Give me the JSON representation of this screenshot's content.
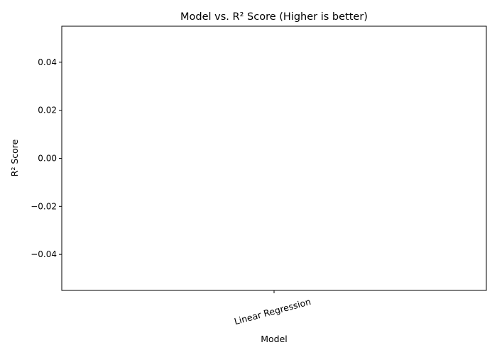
{
  "chart_data": {
    "type": "bar",
    "title": "Model vs. R² Score (Higher is better)",
    "xlabel": "Model",
    "ylabel": "R² Score",
    "categories": [
      "Linear Regression"
    ],
    "values": [
      0.0
    ],
    "ylim": [
      -0.055,
      0.055
    ],
    "yticks": [
      -0.04,
      -0.02,
      0.0,
      0.02,
      0.04
    ],
    "ytick_labels": [
      "−0.04",
      "−0.02",
      "0.00",
      "0.02",
      "0.04"
    ],
    "grid": false,
    "legend": "none",
    "colors": {
      "bar": "#1f77b4",
      "axis": "#000000",
      "background": "#ffffff"
    }
  }
}
